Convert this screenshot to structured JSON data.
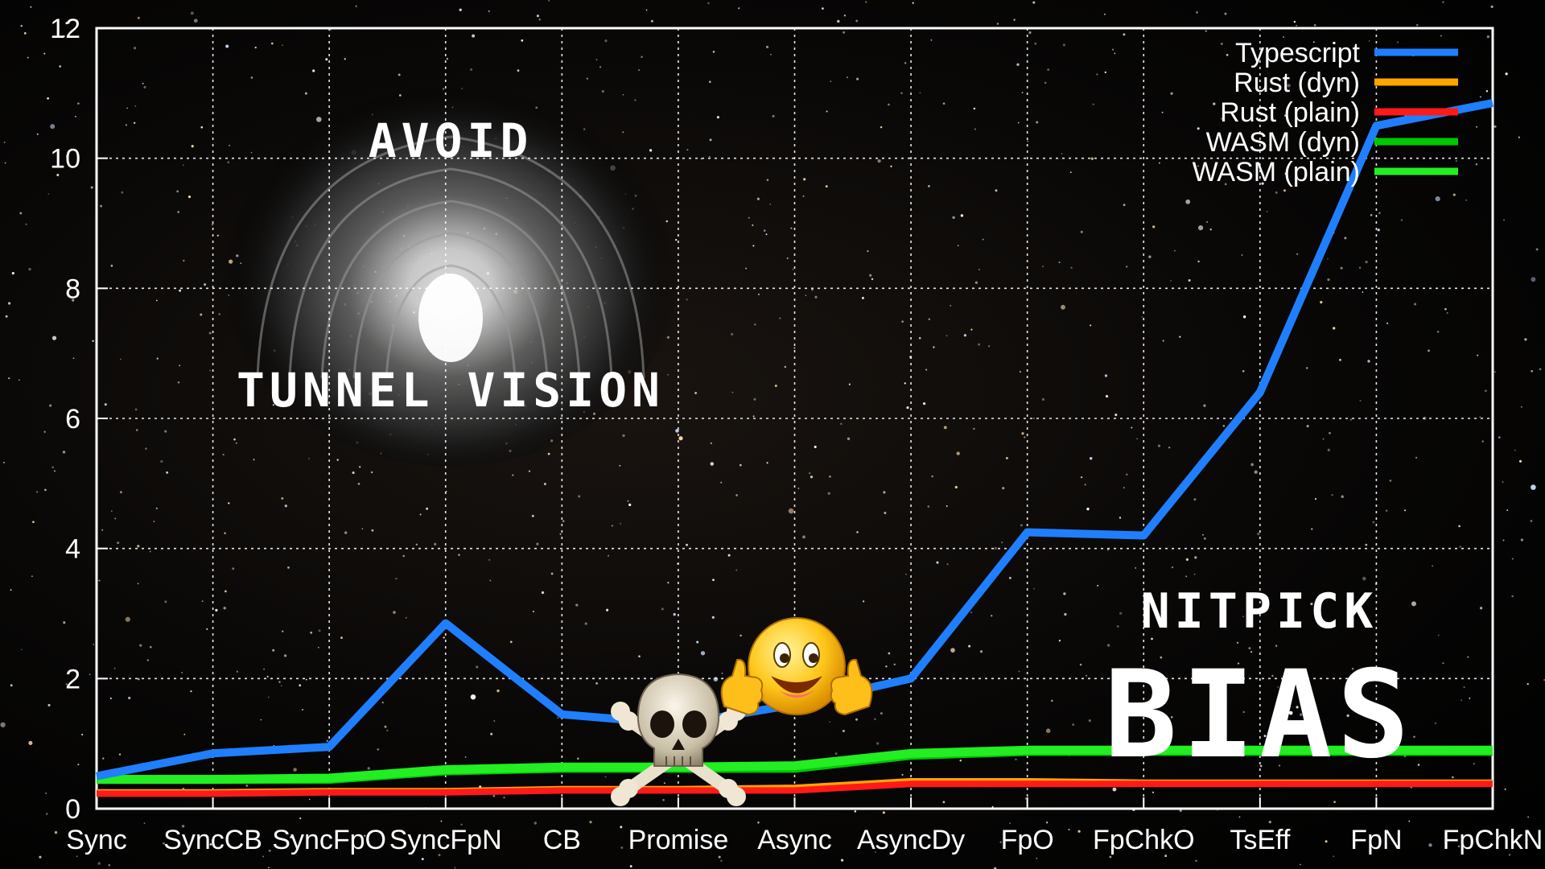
{
  "chart_data": {
    "type": "line",
    "categories": [
      "Sync",
      "SyncCB",
      "SyncFpO",
      "SyncFpN",
      "CB",
      "Promise",
      "Async",
      "AsyncDy",
      "FpO",
      "FpChkO",
      "TsEff",
      "FpN",
      "FpChkN"
    ],
    "ylim": [
      0,
      12
    ],
    "yticks": [
      "0",
      "2",
      "4",
      "6",
      "8",
      "10",
      "12"
    ],
    "grid": true,
    "legend_position": "top-right",
    "series": [
      {
        "name": "Typescript",
        "color": "#1f7fff",
        "values": [
          0.5,
          0.85,
          0.95,
          2.85,
          1.45,
          1.3,
          1.6,
          2.0,
          4.25,
          4.2,
          6.4,
          10.5,
          10.85
        ]
      },
      {
        "name": "Rust (dyn)",
        "color": "#ffa500",
        "values": [
          0.25,
          0.25,
          0.27,
          0.27,
          0.3,
          0.3,
          0.32,
          0.42,
          0.42,
          0.4,
          0.4,
          0.4,
          0.4
        ]
      },
      {
        "name": "Rust (plain)",
        "color": "#ff1a1a",
        "values": [
          0.23,
          0.23,
          0.25,
          0.25,
          0.28,
          0.28,
          0.28,
          0.38,
          0.38,
          0.38,
          0.38,
          0.38,
          0.38
        ]
      },
      {
        "name": "WASM (dyn)",
        "color": "#00c800",
        "values": [
          0.45,
          0.45,
          0.45,
          0.58,
          0.62,
          0.62,
          0.62,
          0.82,
          0.88,
          0.88,
          0.88,
          0.88,
          0.88
        ]
      },
      {
        "name": "WASM (plain)",
        "color": "#22ee22",
        "values": [
          0.45,
          0.45,
          0.47,
          0.6,
          0.64,
          0.64,
          0.66,
          0.85,
          0.9,
          0.9,
          0.9,
          0.9,
          0.9
        ]
      }
    ]
  },
  "overlay_text": {
    "avoid": "AVOID",
    "tunnel_vision": "TUNNEL VISION",
    "nitpick": "NITPICK",
    "bias": "BIAS"
  },
  "icons": {
    "skull": "skull-crossbones-icon",
    "smiley": "thumbs-up-smiley-icon",
    "tunnel": "tunnel-image"
  }
}
